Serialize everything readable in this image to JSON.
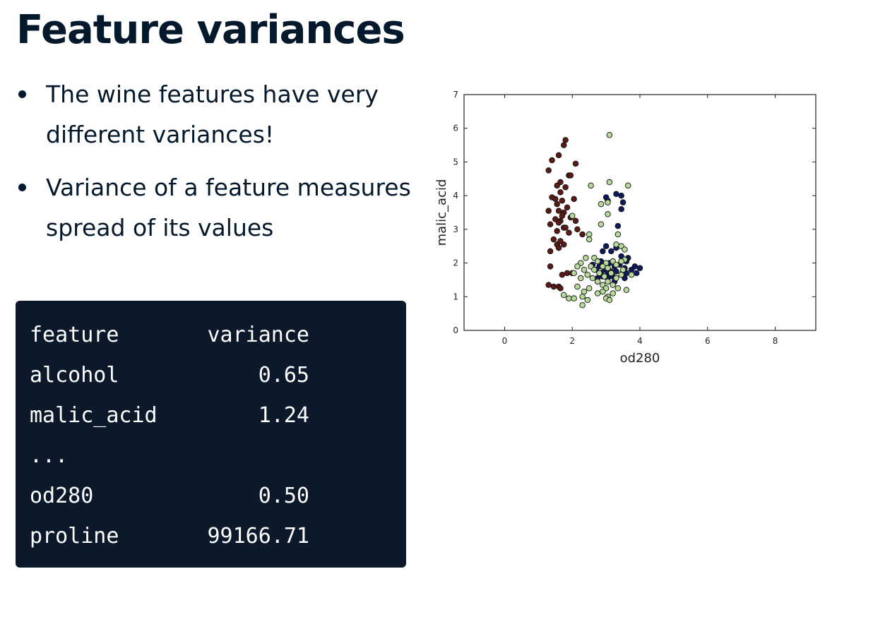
{
  "slide": {
    "title": "Feature variances",
    "bullets": [
      {
        "text": "The wine features have very different variances!"
      },
      {
        "text": "Variance of a feature measures spread of its values"
      }
    ]
  },
  "code_block": {
    "header": {
      "name": "feature",
      "value": "variance"
    },
    "rows": [
      {
        "name": "alcohol",
        "value": "0.65"
      },
      {
        "name": "malic_acid",
        "value": "1.24"
      },
      {
        "name": "...",
        "value": ""
      },
      {
        "name": "od280",
        "value": "0.50"
      },
      {
        "name": "proline",
        "value": "99166.71"
      }
    ]
  },
  "chart_data": {
    "type": "scatter",
    "title": "",
    "xlabel": "od280",
    "ylabel": "malic_acid",
    "xlim": [
      -1.2,
      9.2
    ],
    "ylim": [
      0,
      7
    ],
    "xticks": [
      0,
      2,
      4,
      6,
      8
    ],
    "yticks": [
      0,
      1,
      2,
      3,
      4,
      5,
      6,
      7
    ],
    "grid": false,
    "series": [
      {
        "color": "#5c1a14",
        "points": [
          [
            1.8,
            5.65
          ],
          [
            1.75,
            5.5
          ],
          [
            1.6,
            5.2
          ],
          [
            1.4,
            5.05
          ],
          [
            1.3,
            4.75
          ],
          [
            1.9,
            4.6
          ],
          [
            1.95,
            4.6
          ],
          [
            2.1,
            4.95
          ],
          [
            1.65,
            4.4
          ],
          [
            1.55,
            4.3
          ],
          [
            1.8,
            4.25
          ],
          [
            1.65,
            4.1
          ],
          [
            1.4,
            3.95
          ],
          [
            1.5,
            3.9
          ],
          [
            1.7,
            3.85
          ],
          [
            1.55,
            3.75
          ],
          [
            2.05,
            3.9
          ],
          [
            1.85,
            3.65
          ],
          [
            1.3,
            3.55
          ],
          [
            1.6,
            3.55
          ],
          [
            1.75,
            3.5
          ],
          [
            1.7,
            3.4
          ],
          [
            1.95,
            3.35
          ],
          [
            1.5,
            3.3
          ],
          [
            1.65,
            3.25
          ],
          [
            2.1,
            3.25
          ],
          [
            1.35,
            3.15
          ],
          [
            1.6,
            3.2
          ],
          [
            1.75,
            3.05
          ],
          [
            1.8,
            3.05
          ],
          [
            2.15,
            3.0
          ],
          [
            1.55,
            2.95
          ],
          [
            1.9,
            2.9
          ],
          [
            2.3,
            2.85
          ],
          [
            1.45,
            2.7
          ],
          [
            1.65,
            2.65
          ],
          [
            1.55,
            2.55
          ],
          [
            1.75,
            2.55
          ],
          [
            1.6,
            2.45
          ],
          [
            1.35,
            2.35
          ],
          [
            1.35,
            1.9
          ],
          [
            1.85,
            1.7
          ],
          [
            1.7,
            1.65
          ],
          [
            2.0,
            1.7
          ],
          [
            1.3,
            1.35
          ],
          [
            1.45,
            1.3
          ],
          [
            1.6,
            1.3
          ],
          [
            1.65,
            1.25
          ]
        ]
      },
      {
        "color": "#0d1a5e",
        "points": [
          [
            3.0,
            3.95
          ],
          [
            3.3,
            4.05
          ],
          [
            3.45,
            4.0
          ],
          [
            3.05,
            3.85
          ],
          [
            3.5,
            3.8
          ],
          [
            3.45,
            3.6
          ],
          [
            3.35,
            3.1
          ],
          [
            3.0,
            2.5
          ],
          [
            2.9,
            2.35
          ],
          [
            3.15,
            2.35
          ],
          [
            3.3,
            2.45
          ],
          [
            3.45,
            2.2
          ],
          [
            3.65,
            2.15
          ],
          [
            2.85,
            2.05
          ],
          [
            3.1,
            2.0
          ],
          [
            3.4,
            1.95
          ],
          [
            3.6,
            2.05
          ],
          [
            2.6,
            1.95
          ],
          [
            2.8,
            1.9
          ],
          [
            3.25,
            1.9
          ],
          [
            3.55,
            1.85
          ],
          [
            3.85,
            1.9
          ],
          [
            4.0,
            1.85
          ],
          [
            2.7,
            1.8
          ],
          [
            2.95,
            1.8
          ],
          [
            3.15,
            1.75
          ],
          [
            3.5,
            1.75
          ],
          [
            3.75,
            1.8
          ],
          [
            2.85,
            1.7
          ],
          [
            3.05,
            1.7
          ],
          [
            3.3,
            1.75
          ],
          [
            3.6,
            1.7
          ],
          [
            3.9,
            1.7
          ],
          [
            2.9,
            1.6
          ],
          [
            3.2,
            1.6
          ],
          [
            3.45,
            1.65
          ],
          [
            2.75,
            1.55
          ],
          [
            3.05,
            1.55
          ],
          [
            3.55,
            1.55
          ],
          [
            3.25,
            1.45
          ]
        ]
      },
      {
        "color": "#b7d99a",
        "points": [
          [
            3.1,
            5.8
          ],
          [
            3.1,
            4.4
          ],
          [
            2.55,
            4.3
          ],
          [
            3.65,
            4.3
          ],
          [
            2.85,
            3.75
          ],
          [
            3.05,
            3.8
          ],
          [
            2.0,
            3.4
          ],
          [
            3.05,
            3.45
          ],
          [
            2.85,
            3.15
          ],
          [
            3.35,
            2.85
          ],
          [
            2.5,
            2.85
          ],
          [
            2.5,
            2.7
          ],
          [
            3.3,
            2.55
          ],
          [
            3.45,
            2.5
          ],
          [
            3.55,
            2.4
          ],
          [
            2.65,
            2.15
          ],
          [
            2.4,
            2.15
          ],
          [
            3.55,
            2.1
          ],
          [
            2.25,
            2.0
          ],
          [
            2.75,
            2.05
          ],
          [
            3.0,
            2.0
          ],
          [
            3.2,
            2.05
          ],
          [
            3.45,
            2.05
          ],
          [
            2.15,
            1.9
          ],
          [
            2.55,
            1.9
          ],
          [
            2.9,
            1.9
          ],
          [
            3.3,
            1.95
          ],
          [
            2.35,
            1.8
          ],
          [
            2.65,
            1.8
          ],
          [
            3.05,
            1.85
          ],
          [
            3.5,
            1.8
          ],
          [
            2.05,
            1.7
          ],
          [
            2.45,
            1.65
          ],
          [
            2.8,
            1.7
          ],
          [
            3.15,
            1.7
          ],
          [
            3.45,
            1.65
          ],
          [
            3.75,
            1.65
          ],
          [
            2.25,
            1.55
          ],
          [
            2.6,
            1.55
          ],
          [
            2.95,
            1.6
          ],
          [
            3.3,
            1.55
          ],
          [
            2.75,
            1.45
          ],
          [
            3.05,
            1.45
          ],
          [
            2.9,
            1.35
          ],
          [
            3.2,
            1.35
          ],
          [
            2.15,
            1.3
          ],
          [
            2.5,
            1.25
          ],
          [
            3.0,
            1.25
          ],
          [
            3.35,
            1.25
          ],
          [
            3.6,
            1.2
          ],
          [
            2.35,
            1.15
          ],
          [
            2.75,
            1.1
          ],
          [
            2.9,
            1.15
          ],
          [
            3.2,
            1.1
          ],
          [
            1.75,
            1.05
          ],
          [
            2.3,
            1.0
          ],
          [
            3.05,
            1.0
          ],
          [
            1.9,
            0.95
          ],
          [
            2.05,
            0.95
          ],
          [
            2.45,
            0.9
          ],
          [
            3.0,
            0.95
          ],
          [
            3.1,
            0.9
          ],
          [
            2.3,
            0.75
          ]
        ]
      }
    ]
  }
}
